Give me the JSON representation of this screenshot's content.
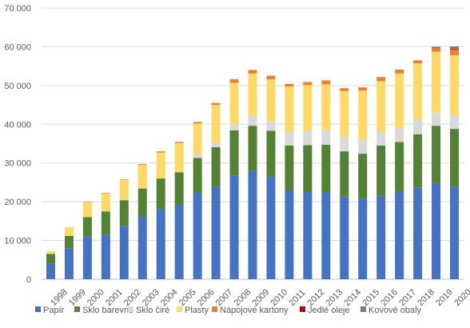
{
  "chart_data": {
    "type": "bar",
    "stacked": true,
    "categories": [
      "1998",
      "1999",
      "2000",
      "2001",
      "2002",
      "2003",
      "2004",
      "2005",
      "2006",
      "2007",
      "2008",
      "2009",
      "2010",
      "2011",
      "2012",
      "2013",
      "2014",
      "2015",
      "2016",
      "2017",
      "2018",
      "2019",
      "2020"
    ],
    "y_ticks": [
      "0",
      "10 000",
      "20 000",
      "30 000",
      "40 000",
      "50 000",
      "60 000",
      "70 000"
    ],
    "ylim": [
      0,
      70000
    ],
    "grid": true,
    "legend_position": "bottom",
    "series": [
      {
        "name": "Papír",
        "color": "#4472C4",
        "values": [
          4000,
          8000,
          11000,
          11500,
          13800,
          16000,
          18000,
          19200,
          22300,
          23800,
          26800,
          28000,
          26400,
          22700,
          22400,
          22400,
          21300,
          20700,
          21500,
          22600,
          23600,
          24800,
          23900
        ]
      },
      {
        "name": "Sklo barevné",
        "color": "#548235",
        "values": [
          2500,
          3200,
          5000,
          6000,
          6600,
          7400,
          8000,
          8400,
          9000,
          10300,
          11600,
          11600,
          11900,
          11800,
          12200,
          12300,
          11700,
          11700,
          13000,
          12800,
          13800,
          14800,
          14900
        ]
      },
      {
        "name": "Sklo čiré",
        "color": "#D9D9D9",
        "values": [
          0,
          0,
          0,
          0,
          0,
          0,
          0,
          0,
          1000,
          1200,
          1500,
          2600,
          2400,
          3500,
          3700,
          3700,
          3700,
          3700,
          3600,
          3600,
          3700,
          3400,
          3500
        ]
      },
      {
        "name": "Plasty",
        "color": "#FFD966",
        "values": [
          700,
          2200,
          3900,
          4700,
          5300,
          6100,
          6700,
          7500,
          7900,
          9700,
          10800,
          10900,
          10900,
          11700,
          11800,
          11900,
          11900,
          12600,
          13000,
          14100,
          14600,
          15700,
          15500
        ]
      },
      {
        "name": "Nápojové kartony",
        "color": "#ED7D31",
        "values": [
          0,
          0,
          100,
          100,
          100,
          200,
          300,
          300,
          400,
          500,
          900,
          900,
          900,
          700,
          800,
          1000,
          700,
          800,
          1100,
          1000,
          800,
          1000,
          1500
        ]
      },
      {
        "name": "Jedlé oleje",
        "color": "#C00000",
        "values": [
          0,
          0,
          0,
          0,
          0,
          0,
          0,
          0,
          0,
          0,
          0,
          0,
          0,
          0,
          0,
          0,
          0,
          0,
          0,
          0,
          0,
          100,
          200
        ]
      },
      {
        "name": "Kovové obaly",
        "color": "#7F7F7F",
        "values": [
          0,
          0,
          0,
          0,
          0,
          0,
          0,
          0,
          0,
          0,
          0,
          0,
          0,
          0,
          0,
          0,
          0,
          0,
          0,
          0,
          0,
          200,
          600
        ]
      }
    ]
  }
}
